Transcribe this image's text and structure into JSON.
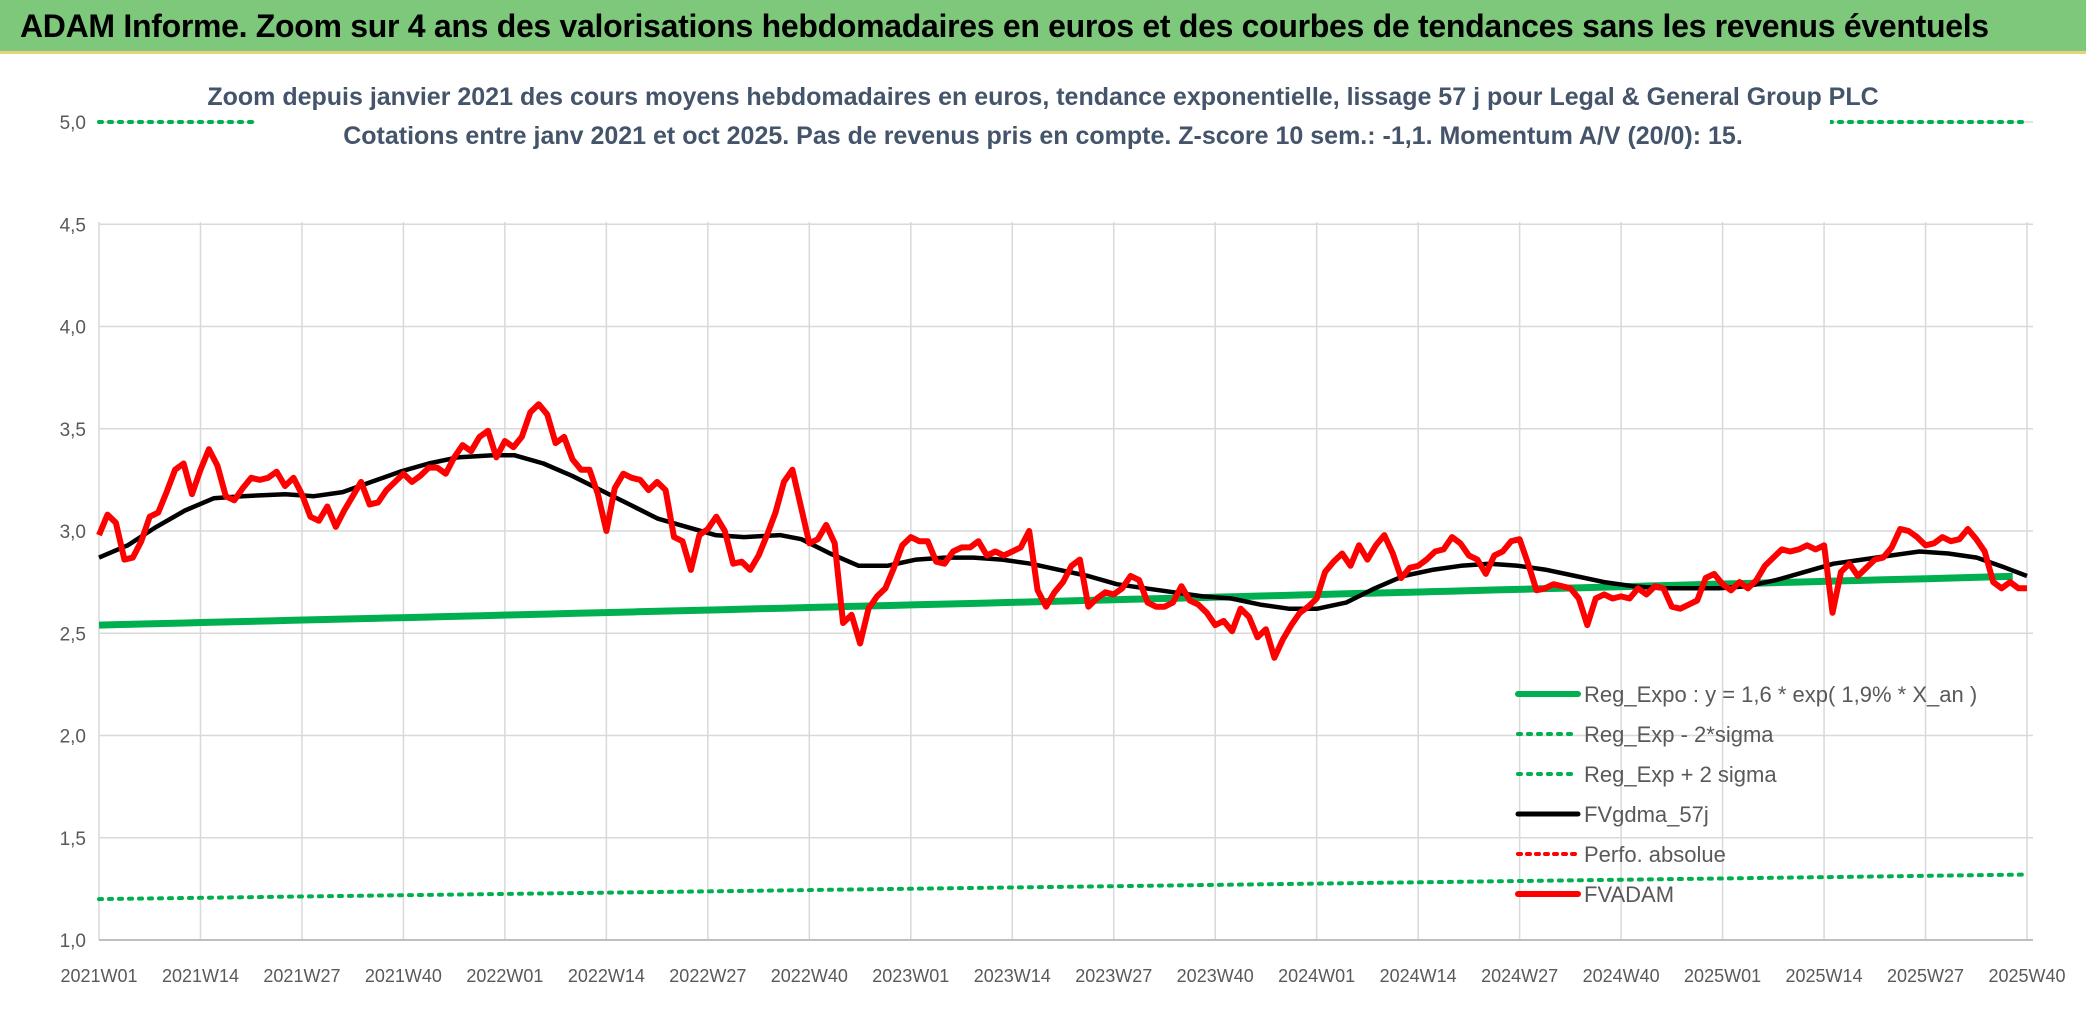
{
  "header": {
    "title": "ADAM Informe. Zoom sur 4 ans des valorisations hebdomadaires en euros et des courbes de tendances sans les revenus éventuels"
  },
  "colors": {
    "banner": "#7dc87a",
    "reg_expo": "#00b050",
    "fvgdma": "#000000",
    "fvadam": "#ff0000",
    "perfo": "#ff0000",
    "grid": "#d9d9d9"
  },
  "chart_data": {
    "type": "line",
    "title_line1": "Zoom depuis janvier 2021 des cours moyens hebdomadaires en euros, tendance exponentielle, lissage 57 j pour Legal & General Group PLC",
    "title_line2": "Cotations entre janv 2021 et oct 2025. Pas de revenus pris en compte. Z-score 10 sem.: -1,1. Momentum A/V (20/0): 15.",
    "ylim": [
      1.0,
      5.0
    ],
    "yticks": [
      "1,0",
      "1,5",
      "2,0",
      "2,5",
      "3,0",
      "3,5",
      "4,0",
      "4,5",
      "5,0"
    ],
    "ytick_values": [
      1.0,
      1.5,
      2.0,
      2.5,
      3.0,
      3.5,
      4.0,
      4.5,
      5.0
    ],
    "xticks": [
      "2021W01",
      "2021W14",
      "2021W27",
      "2021W40",
      "2022W01",
      "2022W14",
      "2022W27",
      "2022W40",
      "2023W01",
      "2023W14",
      "2023W27",
      "2023W40",
      "2024W01",
      "2024W14",
      "2024W27",
      "2024W40",
      "2025W01",
      "2025W14",
      "2025W27",
      "2025W40"
    ],
    "x_week_count": 248,
    "legend": [
      {
        "name": "Reg_Expo : y = 1,6 * exp( 1,9% *  X_an )",
        "style": "solid-green"
      },
      {
        "name": "Reg_Exp - 2*sigma",
        "style": "dotted-green"
      },
      {
        "name": "Reg_Exp + 2 sigma",
        "style": "dotted-green"
      },
      {
        "name": "FVgdma_57j",
        "style": "solid-black"
      },
      {
        "name": "Perfo. absolue",
        "style": "dotted-red"
      },
      {
        "name": "FVADAM",
        "style": "solid-red"
      }
    ],
    "series": [
      {
        "name": "Reg_Expo",
        "start": 2.54,
        "end": 2.78
      },
      {
        "name": "Reg_Exp - 2*sigma",
        "start": 1.2,
        "end": 1.32
      },
      {
        "name": "Reg_Exp + 2 sigma",
        "start": 5.0,
        "end": 5.0
      },
      {
        "name": "FVgdma_57j",
        "points": [
          [
            0,
            2.87
          ],
          [
            4,
            2.93
          ],
          [
            8,
            3.02
          ],
          [
            12,
            3.1
          ],
          [
            16,
            3.16
          ],
          [
            20,
            3.17
          ],
          [
            26,
            3.18
          ],
          [
            30,
            3.17
          ],
          [
            34,
            3.19
          ],
          [
            38,
            3.24
          ],
          [
            42,
            3.29
          ],
          [
            46,
            3.33
          ],
          [
            50,
            3.36
          ],
          [
            55,
            3.37
          ],
          [
            58,
            3.37
          ],
          [
            62,
            3.33
          ],
          [
            66,
            3.27
          ],
          [
            70,
            3.2
          ],
          [
            74,
            3.13
          ],
          [
            78,
            3.06
          ],
          [
            82,
            3.02
          ],
          [
            86,
            2.98
          ],
          [
            90,
            2.97
          ],
          [
            95,
            2.98
          ],
          [
            98,
            2.96
          ],
          [
            102,
            2.89
          ],
          [
            106,
            2.83
          ],
          [
            110,
            2.83
          ],
          [
            114,
            2.86
          ],
          [
            118,
            2.87
          ],
          [
            122,
            2.87
          ],
          [
            126,
            2.86
          ],
          [
            130,
            2.84
          ],
          [
            134,
            2.81
          ],
          [
            138,
            2.78
          ],
          [
            142,
            2.74
          ],
          [
            146,
            2.72
          ],
          [
            150,
            2.7
          ],
          [
            154,
            2.68
          ],
          [
            158,
            2.67
          ],
          [
            162,
            2.64
          ],
          [
            166,
            2.62
          ],
          [
            170,
            2.62
          ],
          [
            174,
            2.65
          ],
          [
            178,
            2.72
          ],
          [
            182,
            2.78
          ],
          [
            186,
            2.81
          ],
          [
            190,
            2.83
          ],
          [
            194,
            2.84
          ],
          [
            198,
            2.83
          ],
          [
            202,
            2.81
          ],
          [
            206,
            2.78
          ],
          [
            210,
            2.75
          ],
          [
            214,
            2.73
          ],
          [
            218,
            2.72
          ],
          [
            222,
            2.72
          ],
          [
            226,
            2.72
          ],
          [
            230,
            2.73
          ],
          [
            234,
            2.76
          ],
          [
            238,
            2.8
          ],
          [
            242,
            2.84
          ],
          [
            246,
            2.86
          ],
          [
            250,
            2.88
          ],
          [
            254,
            2.9
          ],
          [
            258,
            2.89
          ],
          [
            262,
            2.87
          ],
          [
            266,
            2.82
          ],
          [
            269,
            2.78
          ]
        ]
      },
      {
        "name": "FVADAM",
        "points": [
          [
            0,
            2.98
          ],
          [
            1,
            3.08
          ],
          [
            2,
            3.04
          ],
          [
            3,
            2.86
          ],
          [
            4,
            2.87
          ],
          [
            5,
            2.95
          ],
          [
            6,
            3.07
          ],
          [
            7,
            3.09
          ],
          [
            8,
            3.19
          ],
          [
            9,
            3.3
          ],
          [
            10,
            3.33
          ],
          [
            11,
            3.18
          ],
          [
            12,
            3.3
          ],
          [
            13,
            3.4
          ],
          [
            14,
            3.32
          ],
          [
            15,
            3.17
          ],
          [
            16,
            3.15
          ],
          [
            17,
            3.21
          ],
          [
            18,
            3.26
          ],
          [
            19,
            3.25
          ],
          [
            20,
            3.26
          ],
          [
            21,
            3.29
          ],
          [
            22,
            3.22
          ],
          [
            23,
            3.26
          ],
          [
            24,
            3.18
          ],
          [
            25,
            3.07
          ],
          [
            26,
            3.05
          ],
          [
            27,
            3.12
          ],
          [
            28,
            3.02
          ],
          [
            29,
            3.1
          ],
          [
            30,
            3.17
          ],
          [
            31,
            3.24
          ],
          [
            32,
            3.13
          ],
          [
            33,
            3.14
          ],
          [
            34,
            3.2
          ],
          [
            35,
            3.24
          ],
          [
            36,
            3.28
          ],
          [
            37,
            3.24
          ],
          [
            38,
            3.27
          ],
          [
            39,
            3.31
          ],
          [
            40,
            3.31
          ],
          [
            41,
            3.28
          ],
          [
            42,
            3.36
          ],
          [
            43,
            3.42
          ],
          [
            44,
            3.39
          ],
          [
            45,
            3.46
          ],
          [
            46,
            3.49
          ],
          [
            47,
            3.36
          ],
          [
            48,
            3.44
          ],
          [
            49,
            3.41
          ],
          [
            50,
            3.46
          ],
          [
            51,
            3.58
          ],
          [
            52,
            3.62
          ],
          [
            53,
            3.57
          ],
          [
            54,
            3.43
          ],
          [
            55,
            3.46
          ],
          [
            56,
            3.35
          ],
          [
            57,
            3.3
          ],
          [
            58,
            3.3
          ],
          [
            59,
            3.18
          ],
          [
            60,
            3.0
          ],
          [
            61,
            3.21
          ],
          [
            62,
            3.28
          ],
          [
            63,
            3.26
          ],
          [
            64,
            3.25
          ],
          [
            65,
            3.2
          ],
          [
            66,
            3.24
          ],
          [
            67,
            3.2
          ],
          [
            68,
            2.97
          ],
          [
            69,
            2.95
          ],
          [
            70,
            2.81
          ],
          [
            71,
            2.98
          ],
          [
            72,
            3.01
          ],
          [
            73,
            3.07
          ],
          [
            74,
            3.0
          ],
          [
            75,
            2.84
          ],
          [
            76,
            2.85
          ],
          [
            77,
            2.81
          ],
          [
            78,
            2.88
          ],
          [
            79,
            2.98
          ],
          [
            80,
            3.09
          ],
          [
            81,
            3.24
          ],
          [
            82,
            3.3
          ],
          [
            83,
            3.12
          ],
          [
            84,
            2.94
          ],
          [
            85,
            2.96
          ],
          [
            86,
            3.03
          ],
          [
            87,
            2.94
          ],
          [
            88,
            2.55
          ],
          [
            89,
            2.59
          ],
          [
            90,
            2.45
          ],
          [
            91,
            2.62
          ],
          [
            92,
            2.68
          ],
          [
            93,
            2.72
          ],
          [
            94,
            2.82
          ],
          [
            95,
            2.93
          ],
          [
            96,
            2.97
          ],
          [
            97,
            2.95
          ],
          [
            98,
            2.95
          ],
          [
            99,
            2.85
          ],
          [
            100,
            2.84
          ],
          [
            101,
            2.9
          ],
          [
            102,
            2.92
          ],
          [
            103,
            2.92
          ],
          [
            104,
            2.95
          ],
          [
            105,
            2.88
          ],
          [
            106,
            2.9
          ],
          [
            107,
            2.88
          ],
          [
            108,
            2.9
          ],
          [
            109,
            2.92
          ],
          [
            110,
            3.0
          ],
          [
            111,
            2.71
          ],
          [
            112,
            2.63
          ],
          [
            113,
            2.7
          ],
          [
            114,
            2.75
          ],
          [
            115,
            2.83
          ],
          [
            116,
            2.86
          ],
          [
            117,
            2.63
          ],
          [
            118,
            2.67
          ],
          [
            119,
            2.7
          ],
          [
            120,
            2.69
          ],
          [
            121,
            2.72
          ],
          [
            122,
            2.78
          ],
          [
            123,
            2.76
          ],
          [
            124,
            2.65
          ],
          [
            125,
            2.63
          ],
          [
            126,
            2.63
          ],
          [
            127,
            2.65
          ],
          [
            128,
            2.73
          ],
          [
            129,
            2.66
          ],
          [
            130,
            2.64
          ],
          [
            131,
            2.6
          ],
          [
            132,
            2.54
          ],
          [
            133,
            2.56
          ],
          [
            134,
            2.51
          ],
          [
            135,
            2.62
          ],
          [
            136,
            2.58
          ],
          [
            137,
            2.48
          ],
          [
            138,
            2.52
          ],
          [
            139,
            2.38
          ],
          [
            140,
            2.47
          ],
          [
            141,
            2.54
          ],
          [
            142,
            2.6
          ],
          [
            143,
            2.63
          ],
          [
            144,
            2.67
          ],
          [
            145,
            2.8
          ],
          [
            146,
            2.85
          ],
          [
            147,
            2.89
          ],
          [
            148,
            2.83
          ],
          [
            149,
            2.93
          ],
          [
            150,
            2.86
          ],
          [
            151,
            2.93
          ],
          [
            152,
            2.98
          ],
          [
            153,
            2.89
          ],
          [
            154,
            2.77
          ],
          [
            155,
            2.82
          ],
          [
            156,
            2.83
          ],
          [
            157,
            2.86
          ],
          [
            158,
            2.9
          ],
          [
            159,
            2.91
          ],
          [
            160,
            2.97
          ],
          [
            161,
            2.94
          ],
          [
            162,
            2.88
          ],
          [
            163,
            2.86
          ],
          [
            164,
            2.79
          ],
          [
            165,
            2.88
          ],
          [
            166,
            2.9
          ],
          [
            167,
            2.95
          ],
          [
            168,
            2.96
          ],
          [
            169,
            2.84
          ],
          [
            170,
            2.71
          ],
          [
            171,
            2.72
          ],
          [
            172,
            2.74
          ],
          [
            173,
            2.73
          ],
          [
            174,
            2.72
          ],
          [
            175,
            2.67
          ],
          [
            176,
            2.54
          ],
          [
            177,
            2.67
          ],
          [
            178,
            2.69
          ],
          [
            179,
            2.67
          ],
          [
            180,
            2.68
          ],
          [
            181,
            2.67
          ],
          [
            182,
            2.72
          ],
          [
            183,
            2.69
          ],
          [
            184,
            2.73
          ],
          [
            185,
            2.72
          ],
          [
            186,
            2.63
          ],
          [
            187,
            2.62
          ],
          [
            188,
            2.64
          ],
          [
            189,
            2.66
          ],
          [
            190,
            2.77
          ],
          [
            191,
            2.79
          ],
          [
            192,
            2.74
          ],
          [
            193,
            2.71
          ],
          [
            194,
            2.75
          ],
          [
            195,
            2.72
          ],
          [
            196,
            2.76
          ],
          [
            197,
            2.83
          ],
          [
            198,
            2.87
          ],
          [
            199,
            2.91
          ],
          [
            200,
            2.9
          ],
          [
            201,
            2.91
          ],
          [
            202,
            2.93
          ],
          [
            203,
            2.91
          ],
          [
            204,
            2.93
          ],
          [
            205,
            2.6
          ],
          [
            206,
            2.8
          ],
          [
            207,
            2.84
          ],
          [
            208,
            2.78
          ],
          [
            209,
            2.82
          ],
          [
            210,
            2.86
          ],
          [
            211,
            2.87
          ],
          [
            212,
            2.92
          ],
          [
            213,
            3.01
          ],
          [
            214,
            3.0
          ],
          [
            215,
            2.97
          ],
          [
            216,
            2.93
          ],
          [
            217,
            2.94
          ],
          [
            218,
            2.97
          ],
          [
            219,
            2.95
          ],
          [
            220,
            2.96
          ],
          [
            221,
            3.01
          ],
          [
            222,
            2.96
          ],
          [
            223,
            2.9
          ],
          [
            224,
            2.75
          ],
          [
            225,
            2.72
          ],
          [
            226,
            2.75
          ],
          [
            227,
            2.72
          ],
          [
            228,
            2.72
          ]
        ]
      }
    ]
  }
}
